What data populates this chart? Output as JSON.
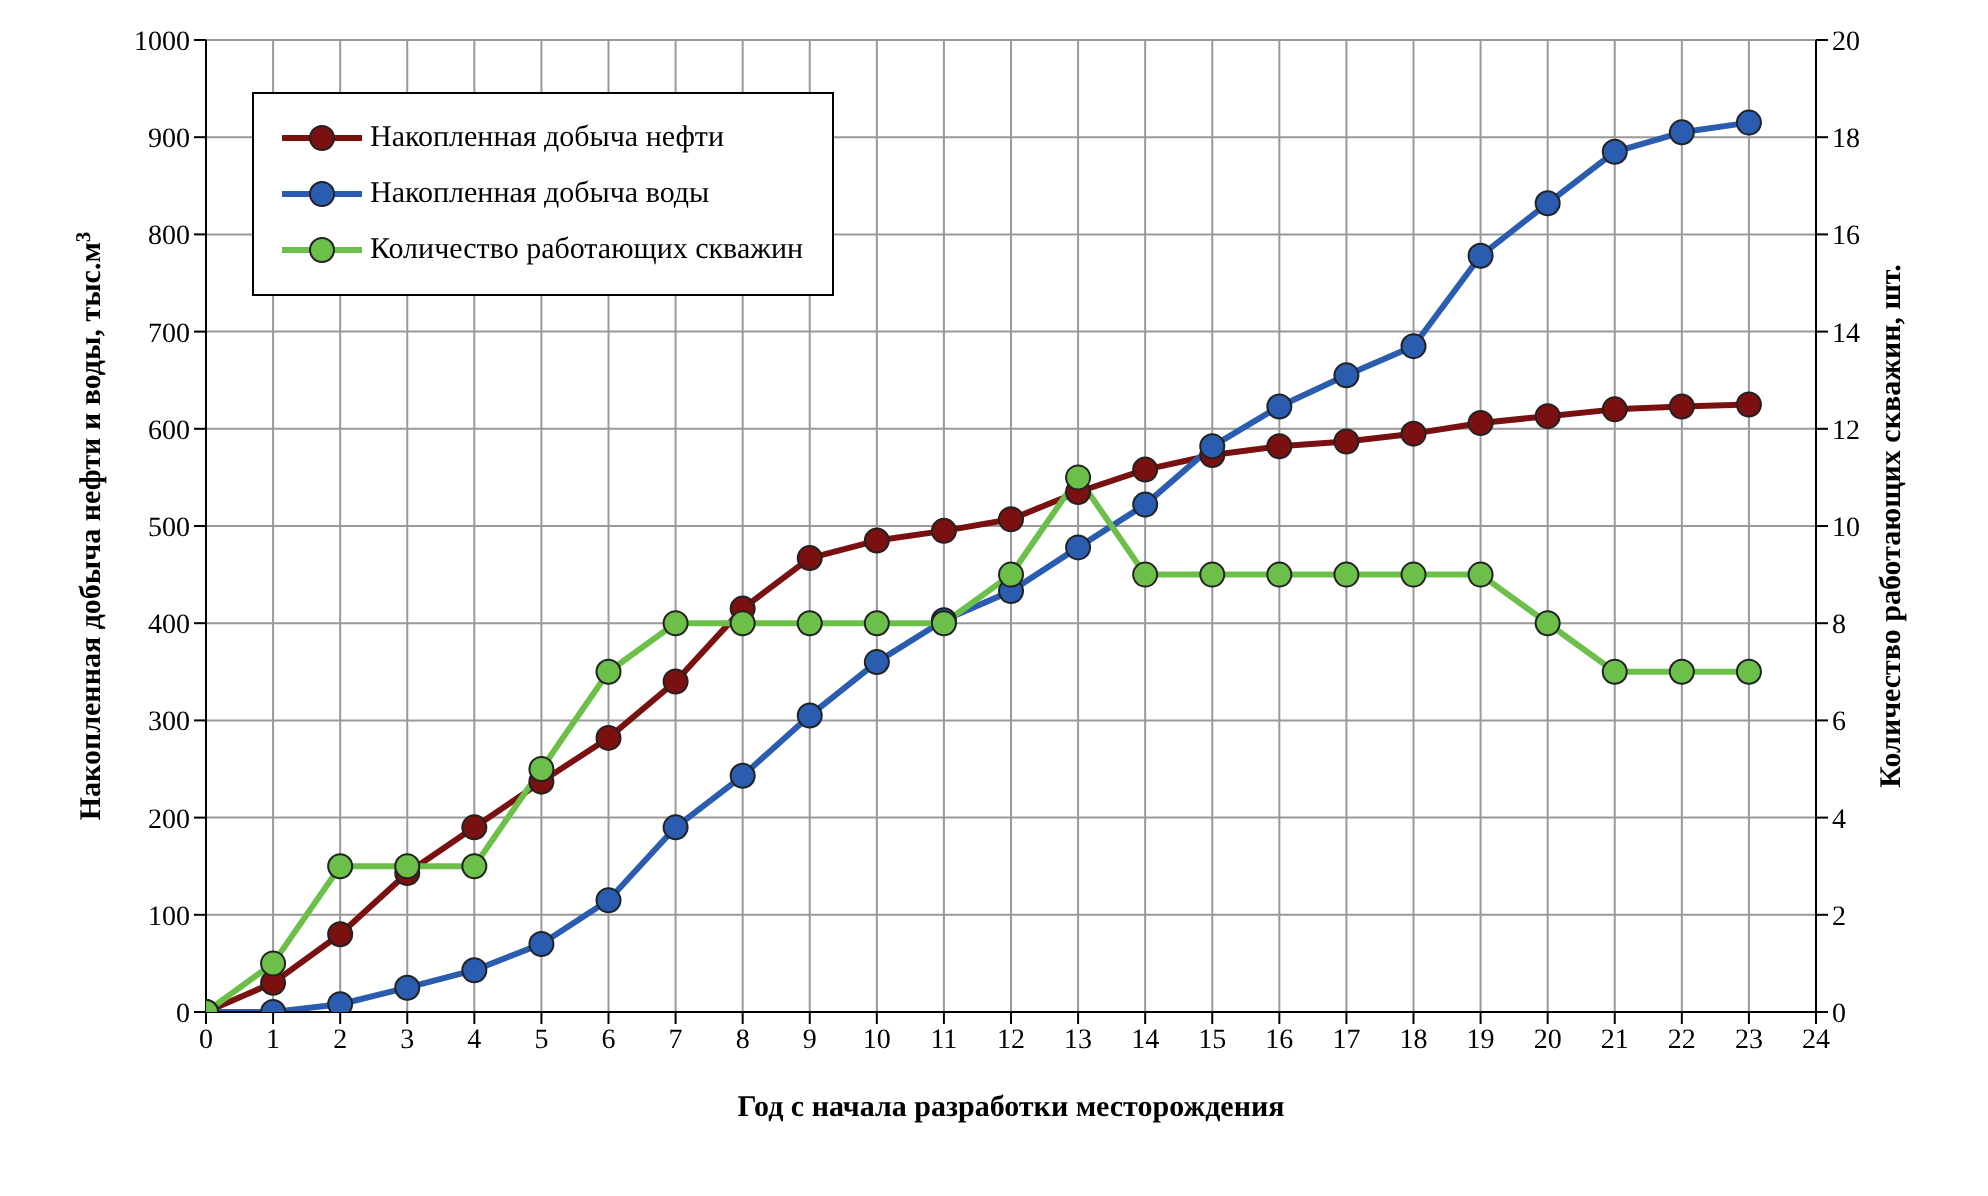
{
  "chart_data": {
    "type": "line",
    "xlabel": "Год с начала разработки месторождения",
    "ylabel": "Накопленная добыча нефти и воды, тыс.м$^{3}$",
    "y2label": "Количество работающих скважин, шт.",
    "x": [
      0,
      1,
      2,
      3,
      4,
      5,
      6,
      7,
      8,
      9,
      10,
      11,
      12,
      13,
      14,
      15,
      16,
      17,
      18,
      19,
      20,
      21,
      22,
      23
    ],
    "series": [
      {
        "name": "Накопленная добыча нефти",
        "color": "#7b1010",
        "values": [
          0,
          30,
          80,
          143,
          190,
          237,
          282,
          340,
          415,
          467,
          485,
          495,
          507,
          535,
          558,
          573,
          582,
          587,
          595,
          606,
          613,
          620,
          623,
          625
        ]
      },
      {
        "name": "Накопленная добыча воды",
        "color": "#2a5db0",
        "values": [
          0,
          0,
          8,
          25,
          43,
          70,
          115,
          190,
          243,
          305,
          360,
          403,
          433,
          478,
          522,
          582,
          623,
          655,
          685,
          778,
          832,
          885,
          905,
          915
        ]
      },
      {
        "name": "Количество работающих скважин",
        "color": "#6cc04a",
        "axis": "y2",
        "values": [
          0,
          1,
          3,
          3,
          3,
          5,
          7,
          8,
          8,
          8,
          8,
          8,
          9,
          11,
          9,
          9,
          9,
          9,
          9,
          9,
          8,
          7,
          7,
          7
        ]
      }
    ],
    "xlim": [
      0,
      24
    ],
    "xticks": [
      0,
      1,
      2,
      3,
      4,
      5,
      6,
      7,
      8,
      9,
      10,
      11,
      12,
      13,
      14,
      15,
      16,
      17,
      18,
      19,
      20,
      21,
      22,
      23,
      24
    ],
    "ylim": [
      0,
      1000
    ],
    "yticks": [
      0,
      100,
      200,
      300,
      400,
      500,
      600,
      700,
      800,
      900,
      1000
    ],
    "y2lim": [
      0,
      20
    ],
    "y2ticks": [
      0,
      2,
      4,
      6,
      8,
      10,
      12,
      14,
      16,
      18,
      20
    ],
    "grid": true,
    "legend": "top left",
    "marker": "circle",
    "line_style": "solid"
  }
}
